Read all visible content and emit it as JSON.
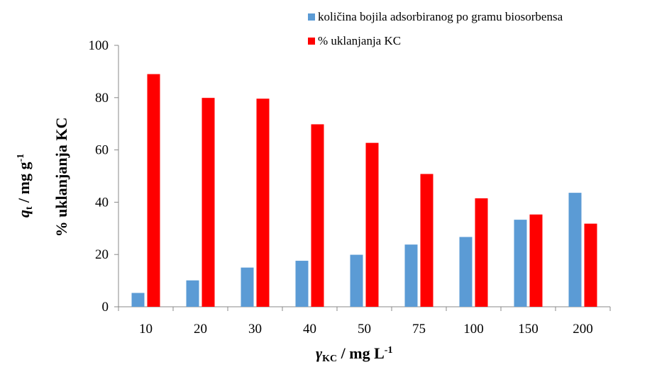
{
  "chart_data": {
    "type": "bar",
    "categories": [
      "10",
      "20",
      "30",
      "40",
      "50",
      "75",
      "100",
      "150",
      "200"
    ],
    "series": [
      {
        "name": "količina bojila adsorbiranog po gramu biosorbensa",
        "color": "#5b9bd5",
        "values": [
          5.3,
          10.1,
          15.0,
          17.6,
          19.9,
          23.8,
          26.7,
          33.3,
          43.6
        ]
      },
      {
        "name": "% uklanjanja KC",
        "color": "#ff0000",
        "values": [
          89.0,
          79.9,
          79.6,
          69.8,
          62.7,
          50.8,
          41.5,
          35.3,
          31.8
        ]
      }
    ],
    "ylim": [
      0,
      100
    ],
    "yticks": [
      "0",
      "20",
      "40",
      "60",
      "80",
      "100"
    ],
    "xlabel": {
      "symbol": "γ",
      "subscript": "KC",
      "unit": " / mg L",
      "superscript": "-1"
    },
    "ylabel": {
      "line1_symbol": "q",
      "line1_subscript": "t",
      "line1_unit": " / mg g",
      "line1_superscript": "-1",
      "line2": "% uklanjanja  KC"
    },
    "legend_position": "top-right",
    "grid": false
  }
}
